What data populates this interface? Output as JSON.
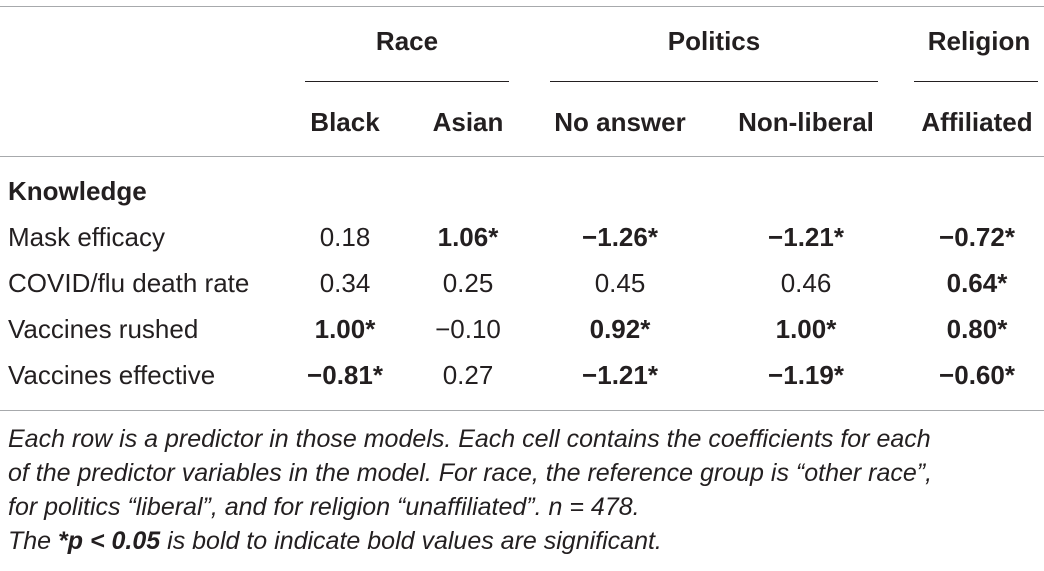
{
  "table": {
    "group_headers": [
      "Race",
      "Politics",
      "Religion"
    ],
    "column_headers": [
      "Black",
      "Asian",
      "No answer",
      "Non-liberal",
      "Affiliated"
    ],
    "section_label": "Knowledge",
    "rows": [
      {
        "label": "Mask efficacy",
        "cells": [
          {
            "text": "0.18",
            "bold": false
          },
          {
            "text": "1.06*",
            "bold": true
          },
          {
            "text": "−1.26*",
            "bold": true
          },
          {
            "text": "−1.21*",
            "bold": true
          },
          {
            "text": "−0.72*",
            "bold": true
          }
        ]
      },
      {
        "label": "COVID/flu death rate",
        "cells": [
          {
            "text": "0.34",
            "bold": false
          },
          {
            "text": "0.25",
            "bold": false
          },
          {
            "text": "0.45",
            "bold": false
          },
          {
            "text": "0.46",
            "bold": false
          },
          {
            "text": "0.64*",
            "bold": true
          }
        ]
      },
      {
        "label": "Vaccines rushed",
        "cells": [
          {
            "text": "1.00*",
            "bold": true
          },
          {
            "text": "−0.10",
            "bold": false
          },
          {
            "text": "0.92*",
            "bold": true
          },
          {
            "text": "1.00*",
            "bold": true
          },
          {
            "text": "0.80*",
            "bold": true
          }
        ]
      },
      {
        "label": "Vaccines effective",
        "cells": [
          {
            "text": "−0.81*",
            "bold": true
          },
          {
            "text": "0.27",
            "bold": false
          },
          {
            "text": "−1.21*",
            "bold": true
          },
          {
            "text": "−1.19*",
            "bold": true
          },
          {
            "text": "−0.60*",
            "bold": true
          }
        ]
      }
    ]
  },
  "footnote": {
    "line1": "Each row is a predictor in those models. Each cell contains the coefficients for each",
    "line2": "of the predictor variables in the model. For race, the reference group is “other race”,",
    "line3": "for politics “liberal”, and for religion “unaffiliated”. n = 478.",
    "line4_prefix": "The ",
    "line4_bold": "*p < 0.05",
    "line4_suffix": " is bold to indicate bold values are significant."
  }
}
